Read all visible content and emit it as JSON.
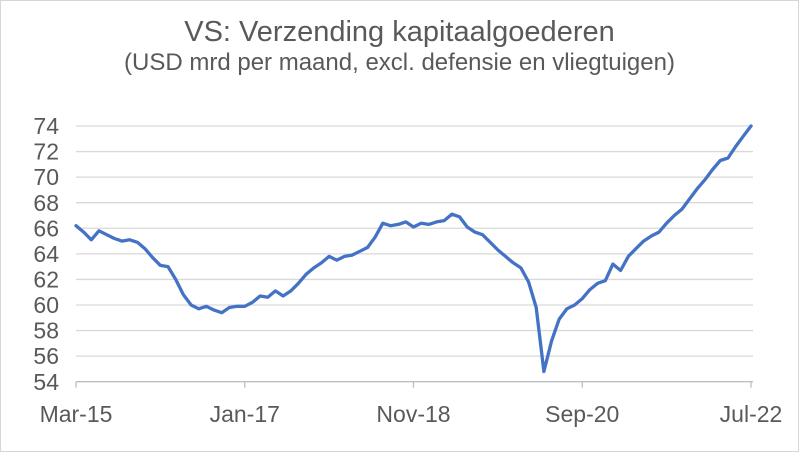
{
  "chart_data": {
    "type": "line",
    "title": "VS: Verzending kapitaalgoederen",
    "subtitle": "(USD mrd per maand, excl. defensie en vliegtuigen)",
    "series_name": "Verzending kapitaalgoederen (USD mrd per maand)",
    "x": [
      "Mar-15",
      "Apr-15",
      "May-15",
      "Jun-15",
      "Jul-15",
      "Aug-15",
      "Sep-15",
      "Oct-15",
      "Nov-15",
      "Dec-15",
      "Jan-16",
      "Feb-16",
      "Mar-16",
      "Apr-16",
      "May-16",
      "Jun-16",
      "Jul-16",
      "Aug-16",
      "Sep-16",
      "Oct-16",
      "Nov-16",
      "Dec-16",
      "Jan-17",
      "Feb-17",
      "Mar-17",
      "Apr-17",
      "May-17",
      "Jun-17",
      "Jul-17",
      "Aug-17",
      "Sep-17",
      "Oct-17",
      "Nov-17",
      "Dec-17",
      "Jan-18",
      "Feb-18",
      "Mar-18",
      "Apr-18",
      "May-18",
      "Jun-18",
      "Jul-18",
      "Aug-18",
      "Sep-18",
      "Oct-18",
      "Nov-18",
      "Dec-18",
      "Jan-19",
      "Feb-19",
      "Mar-19",
      "Apr-19",
      "May-19",
      "Jun-19",
      "Jul-19",
      "Aug-19",
      "Sep-19",
      "Oct-19",
      "Nov-19",
      "Dec-19",
      "Jan-20",
      "Feb-20",
      "Mar-20",
      "Apr-20",
      "May-20",
      "Jun-20",
      "Jul-20",
      "Aug-20",
      "Sep-20",
      "Oct-20",
      "Nov-20",
      "Dec-20",
      "Jan-21",
      "Feb-21",
      "Mar-21",
      "Apr-21",
      "May-21",
      "Jun-21",
      "Jul-21",
      "Aug-21",
      "Sep-21",
      "Oct-21",
      "Nov-21",
      "Dec-21",
      "Jan-22",
      "Feb-22",
      "Mar-22",
      "Apr-22",
      "May-22",
      "Jun-22",
      "Jul-22"
    ],
    "values": [
      66.2,
      65.7,
      65.1,
      65.8,
      65.5,
      65.2,
      65.0,
      65.1,
      64.9,
      64.4,
      63.7,
      63.1,
      63.0,
      62.0,
      60.8,
      60.0,
      59.7,
      59.9,
      59.6,
      59.4,
      59.8,
      59.9,
      59.9,
      60.2,
      60.7,
      60.6,
      61.1,
      60.7,
      61.1,
      61.7,
      62.4,
      62.9,
      63.3,
      63.8,
      63.5,
      63.8,
      63.9,
      64.2,
      64.5,
      65.3,
      66.4,
      66.2,
      66.3,
      66.5,
      66.1,
      66.4,
      66.3,
      66.5,
      66.6,
      67.1,
      66.9,
      66.1,
      65.7,
      65.5,
      64.9,
      64.3,
      63.8,
      63.3,
      62.9,
      61.8,
      59.8,
      54.8,
      57.2,
      58.9,
      59.7,
      60.0,
      60.5,
      61.2,
      61.7,
      61.9,
      63.2,
      62.7,
      63.8,
      64.4,
      65.0,
      65.4,
      65.7,
      66.4,
      67.0,
      67.5,
      68.3,
      69.1,
      69.8,
      70.6,
      71.3,
      71.5,
      72.4,
      73.2,
      74.0
    ],
    "xticks": [
      "Mar-15",
      "Jan-17",
      "Nov-18",
      "Sep-20",
      "Jul-22"
    ],
    "yticks": [
      54,
      56,
      58,
      60,
      62,
      64,
      66,
      68,
      70,
      72,
      74
    ],
    "ylim": [
      54,
      74
    ],
    "grid": "horizontal",
    "legend": "none",
    "colors": {
      "line": "#4472C4",
      "text": "#595959",
      "gridline": "#D9D9D9",
      "axis": "#BFBFBF",
      "background": "#FFFFFF",
      "border": "#D6D6D6"
    }
  }
}
